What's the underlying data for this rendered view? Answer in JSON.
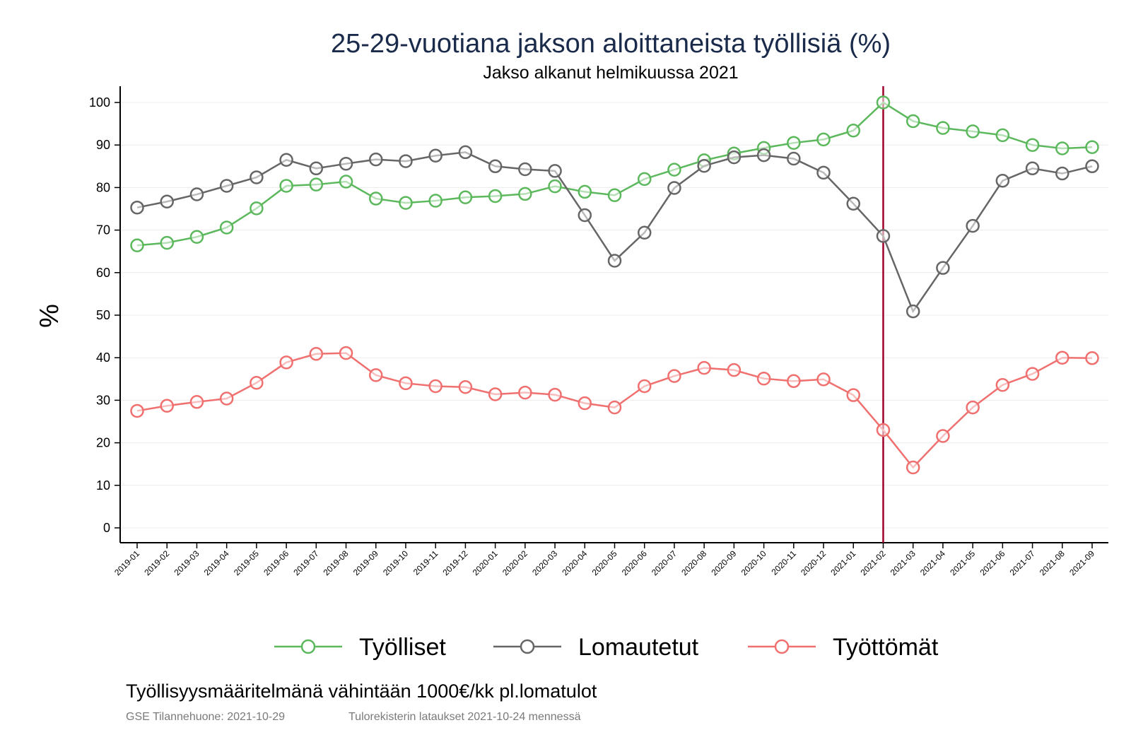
{
  "chart_data": {
    "type": "line",
    "title": "25-29-vuotiana jakson aloittaneista työllisiä (%)",
    "subtitle": "Jakso alkanut helmikuussa 2021",
    "ylabel": "%",
    "xlabel": "",
    "ylim": [
      0,
      100
    ],
    "yticks": [
      "0",
      "10",
      "20",
      "30",
      "40",
      "50",
      "60",
      "70",
      "80",
      "90",
      "100"
    ],
    "grid": true,
    "legend_position": "bottom",
    "reference_line": {
      "x": "2021-02",
      "color": "#a0002a"
    },
    "x": [
      "2019-01",
      "2019-02",
      "2019-03",
      "2019-04",
      "2019-05",
      "2019-06",
      "2019-07",
      "2019-08",
      "2019-09",
      "2019-10",
      "2019-11",
      "2019-12",
      "2020-01",
      "2020-02",
      "2020-03",
      "2020-04",
      "2020-05",
      "2020-06",
      "2020-07",
      "2020-08",
      "2020-09",
      "2020-10",
      "2020-11",
      "2020-12",
      "2021-01",
      "2021-02",
      "2021-03",
      "2021-04",
      "2021-05",
      "2021-06",
      "2021-07",
      "2021-08",
      "2021-09"
    ],
    "series": [
      {
        "name": "Työlliset",
        "color": "#5cb85c",
        "values": [
          66.4,
          67.0,
          68.4,
          70.6,
          75.1,
          80.4,
          80.7,
          81.4,
          77.4,
          76.4,
          76.9,
          77.7,
          78.0,
          78.5,
          80.3,
          79.0,
          78.2,
          82.0,
          84.2,
          86.4,
          88.0,
          89.3,
          90.5,
          91.3,
          93.4,
          100.0,
          95.6,
          94.0,
          93.2,
          92.3,
          90.0,
          89.2,
          89.5
        ]
      },
      {
        "name": "Lomautetut",
        "color": "#666666",
        "values": [
          75.3,
          76.7,
          78.4,
          80.4,
          82.4,
          86.5,
          84.5,
          85.6,
          86.6,
          86.2,
          87.5,
          88.3,
          85.0,
          84.3,
          83.9,
          73.5,
          62.8,
          69.4,
          79.9,
          85.1,
          87.1,
          87.6,
          86.8,
          83.5,
          76.2,
          68.6,
          50.9,
          61.1,
          71.0,
          81.6,
          84.5,
          83.3,
          85.0
        ]
      },
      {
        "name": "Työttömät",
        "color": "#f07070",
        "values": [
          27.5,
          28.7,
          29.6,
          30.4,
          34.1,
          38.9,
          40.9,
          41.1,
          35.9,
          34.0,
          33.3,
          33.1,
          31.4,
          31.8,
          31.3,
          29.3,
          28.3,
          33.3,
          35.7,
          37.6,
          37.1,
          35.1,
          34.5,
          34.9,
          31.2,
          23.0,
          14.2,
          21.6,
          28.3,
          33.6,
          36.2,
          40.0,
          39.9
        ]
      }
    ]
  },
  "footer": {
    "note": "Työllisyysmääritelmänä vähintään 1000€/kk pl.lomatulot",
    "source1": "GSE Tilannehuone: 2021-10-29",
    "source2": "Tulorekisterin lataukset 2021-10-24 mennessä"
  }
}
